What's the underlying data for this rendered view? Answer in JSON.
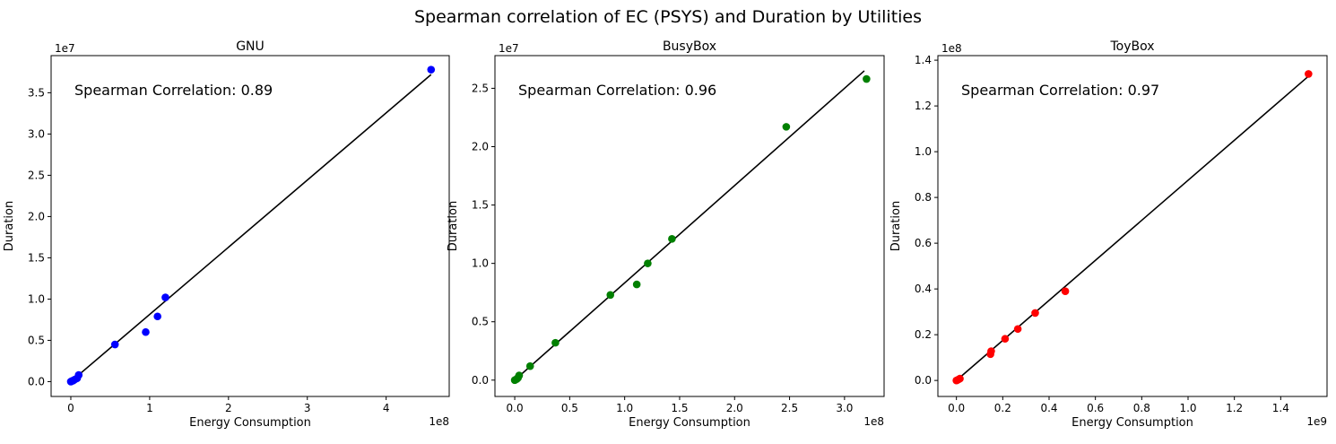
{
  "suptitle": "Spearman correlation of EC (PSYS) and Duration by Utilities",
  "chart_data": [
    {
      "type": "scatter",
      "title": "GNU",
      "xlabel": "Energy Consumption",
      "ylabel": "Duration",
      "x_multiplier": "1e8",
      "y_multiplier": "1e7",
      "xlim": [
        -25000000.0,
        480000000.0
      ],
      "ylim": [
        -1800000.0,
        39500000.0
      ],
      "xticks": [
        0,
        100000000.0,
        200000000.0,
        300000000.0,
        400000000.0
      ],
      "xtick_labels": [
        "0",
        "1",
        "2",
        "3",
        "4"
      ],
      "yticks": [
        0,
        5000000.0,
        10000000.0,
        15000000.0,
        20000000.0,
        25000000.0,
        30000000.0,
        35000000.0
      ],
      "ytick_labels": [
        "0.0",
        "0.5",
        "1.0",
        "1.5",
        "2.0",
        "2.5",
        "3.0",
        "3.5"
      ],
      "annotation": "Spearman Correlation: 0.89",
      "point_color": "#0000ff",
      "line_color": "#000000",
      "grid": false,
      "points": [
        [
          0,
          0
        ],
        [
          1000000.0,
          50000
        ],
        [
          2000000.0,
          100000
        ],
        [
          3000000.0,
          120000
        ],
        [
          5000000.0,
          250000
        ],
        [
          8000000.0,
          400000
        ],
        [
          10000000.0,
          800000
        ],
        [
          56000000.0,
          4500000.0
        ],
        [
          95000000.0,
          6000000.0
        ],
        [
          110000000.0,
          7900000.0
        ],
        [
          120000000.0,
          10200000.0
        ],
        [
          457000000.0,
          37800000.0
        ]
      ],
      "fit_line": [
        [
          0,
          0
        ],
        [
          457000000.0,
          37200000.0
        ]
      ]
    },
    {
      "type": "scatter",
      "title": "BusyBox",
      "xlabel": "Energy Consumption",
      "ylabel": "Duration",
      "x_multiplier": "1e8",
      "y_multiplier": "1e7",
      "xlim": [
        -18000000.0,
        336000000.0
      ],
      "ylim": [
        -1400000.0,
        27800000.0
      ],
      "xticks": [
        0,
        50000000.0,
        100000000.0,
        150000000.0,
        200000000.0,
        250000000.0,
        300000000.0
      ],
      "xtick_labels": [
        "0.0",
        "0.5",
        "1.0",
        "1.5",
        "2.0",
        "2.5",
        "3.0"
      ],
      "yticks": [
        0,
        5000000.0,
        10000000.0,
        15000000.0,
        20000000.0,
        25000000.0
      ],
      "ytick_labels": [
        "0.0",
        "0.5",
        "1.0",
        "1.5",
        "2.0",
        "2.5"
      ],
      "annotation": "Spearman Correlation: 0.96",
      "point_color": "#008000",
      "line_color": "#000000",
      "grid": false,
      "points": [
        [
          0,
          0
        ],
        [
          1000000.0,
          50000
        ],
        [
          2000000.0,
          100000
        ],
        [
          3000000.0,
          200000
        ],
        [
          4000000.0,
          400000
        ],
        [
          14000000.0,
          1200000.0
        ],
        [
          37000000.0,
          3200000.0
        ],
        [
          87000000.0,
          7300000.0
        ],
        [
          111000000.0,
          8200000.0
        ],
        [
          121000000.0,
          10000000.0
        ],
        [
          143000000.0,
          12100000.0
        ],
        [
          247000000.0,
          21700000.0
        ],
        [
          320000000.0,
          25800000.0
        ]
      ],
      "fit_line": [
        [
          0,
          0
        ],
        [
          318000000.0,
          26500000.0
        ]
      ]
    },
    {
      "type": "scatter",
      "title": "ToyBox",
      "xlabel": "Energy Consumption",
      "ylabel": "Duration",
      "x_multiplier": "1e9",
      "y_multiplier": "1e8",
      "xlim": [
        -80000000.0,
        1600000000.0
      ],
      "ylim": [
        -7000000.0,
        142000000.0
      ],
      "xticks": [
        0,
        200000000.0,
        400000000.0,
        600000000.0,
        800000000.0,
        1000000000.0,
        1200000000.0,
        1400000000.0
      ],
      "xtick_labels": [
        "0.0",
        "0.2",
        "0.4",
        "0.6",
        "0.8",
        "1.0",
        "1.2",
        "1.4"
      ],
      "yticks": [
        0,
        20000000.0,
        40000000.0,
        60000000.0,
        80000000.0,
        100000000.0,
        120000000.0,
        140000000.0
      ],
      "ytick_labels": [
        "0.0",
        "0.2",
        "0.4",
        "0.6",
        "0.8",
        "1.0",
        "1.2",
        "1.4"
      ],
      "annotation": "Spearman Correlation: 0.97",
      "point_color": "#ff0000",
      "line_color": "#000000",
      "grid": false,
      "points": [
        [
          0,
          0
        ],
        [
          5000000.0,
          200000
        ],
        [
          10000000.0,
          500000
        ],
        [
          15000000.0,
          800000
        ],
        [
          147000000.0,
          11500000.0
        ],
        [
          150000000.0,
          12800000.0
        ],
        [
          210000000.0,
          18200000.0
        ],
        [
          265000000.0,
          22500000.0
        ],
        [
          340000000.0,
          29500000.0
        ],
        [
          470000000.0,
          39000000.0
        ],
        [
          1520000000.0,
          134000000.0
        ]
      ],
      "fit_line": [
        [
          0,
          0
        ],
        [
          1520000000.0,
          133000000.0
        ]
      ]
    }
  ]
}
